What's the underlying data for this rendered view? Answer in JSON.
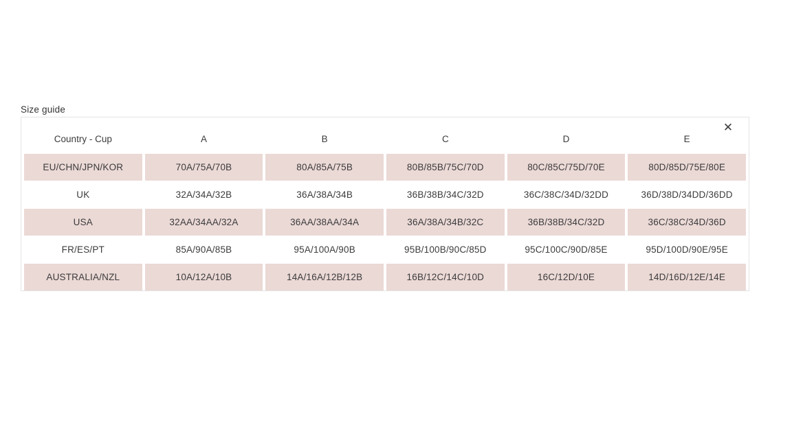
{
  "dialog": {
    "title": "Size guide",
    "close_icon": "✕"
  },
  "table": {
    "headers": [
      "Country - Cup",
      "A",
      "B",
      "C",
      "D",
      "E"
    ],
    "rows": [
      [
        "EU/CHN/JPN/KOR",
        "70A/75A/70B",
        "80A/85A/75B",
        "80B/85B/75C/70D",
        "80C/85C/75D/70E",
        "80D/85D/75E/80E"
      ],
      [
        "UK",
        "32A/34A/32B",
        "36A/38A/34B",
        "36B/38B/34C/32D",
        "36C/38C/34D/32DD",
        "36D/38D/34DD/36DD"
      ],
      [
        "USA",
        "32AA/34AA/32A",
        "36AA/38AA/34A",
        "36A/38A/34B/32C",
        "36B/38B/34C/32D",
        "36C/38C/34D/36D"
      ],
      [
        "FR/ES/PT",
        "85A/90A/85B",
        "95A/100A/90B",
        "95B/100B/90C/85D",
        "95C/100C/90D/85E",
        "95D/100D/90E/95E"
      ],
      [
        "AUSTRALIA/NZL",
        "10A/12A/10B",
        "14A/16A/12B/12B",
        "16B/12C/14C/10D",
        "16C/12D/10E",
        "14D/16D/12E/14E"
      ]
    ]
  },
  "colors": {
    "row_highlight": "#ebd9d6",
    "panel_border": "#e4e4e4",
    "text_color": "#3b3b3b"
  }
}
